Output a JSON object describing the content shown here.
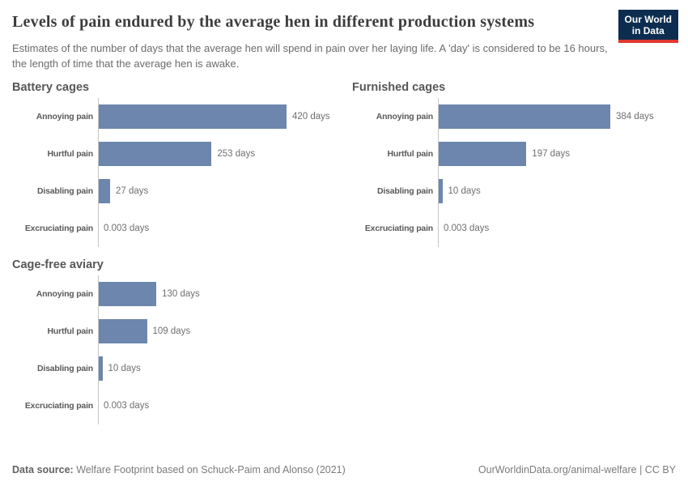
{
  "header": {
    "title": "Levels of pain endured by the average hen in different production systems",
    "subtitle": "Estimates of the number of days that the average hen will spend in pain over her laying life. A 'day' is considered to be 16 hours, the length of time that the average hen is awake.",
    "logo": {
      "line1": "Our World",
      "line2": "in Data"
    }
  },
  "footer": {
    "datasource_label": "Data source:",
    "datasource_text": " Welfare Footprint based on Schuck-Paim and Alonso (2021)",
    "credit": "OurWorldinData.org/animal-welfare | CC BY"
  },
  "colors": {
    "bar": "#6d86ad",
    "axis": "#c6c6c6",
    "logo_background": "#0c2d4f",
    "logo_underline": "#e0392f"
  },
  "chart_data": {
    "type": "bar",
    "orientation": "horizontal",
    "title": "Levels of pain endured by the average hen in different production systems",
    "unit": "days",
    "categories": [
      "Annoying pain",
      "Hurtful pain",
      "Disabling pain",
      "Excruciating pain"
    ],
    "series": [
      {
        "name": "Battery cages",
        "values": [
          420,
          253,
          27,
          0.003
        ],
        "value_labels": [
          "420 days",
          "253 days",
          "27 days",
          "0.003 days"
        ]
      },
      {
        "name": "Furnished cages",
        "values": [
          384,
          197,
          10,
          0.003
        ],
        "value_labels": [
          "384 days",
          "197 days",
          "10 days",
          "0.003 days"
        ]
      },
      {
        "name": "Cage-free aviary",
        "values": [
          130,
          109,
          10,
          0.003
        ],
        "value_labels": [
          "130 days",
          "109 days",
          "10 days",
          "0.003 days"
        ]
      }
    ],
    "xlim": [
      0,
      420
    ],
    "grid": false,
    "legend": false
  }
}
